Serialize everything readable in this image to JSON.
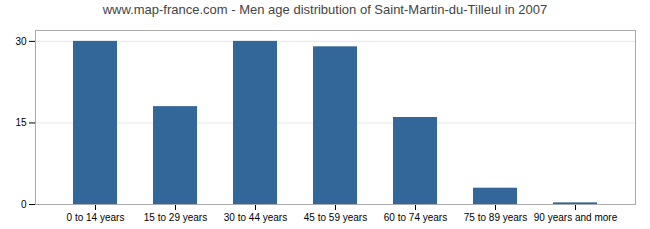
{
  "chart_data": {
    "type": "bar",
    "title": "www.map-france.com - Men age distribution of Saint-Martin-du-Tilleul in 2007",
    "categories": [
      "0 to 14 years",
      "15 to 29 years",
      "30 to 44 years",
      "45 to 59 years",
      "60 to 74 years",
      "75 to 89 years",
      "90 years and more"
    ],
    "values": [
      30,
      18,
      30,
      29,
      16,
      3,
      0.3
    ],
    "color": "#336699",
    "ylim": [
      0,
      32
    ],
    "yticks": [
      0,
      15,
      30
    ],
    "grid": true
  }
}
